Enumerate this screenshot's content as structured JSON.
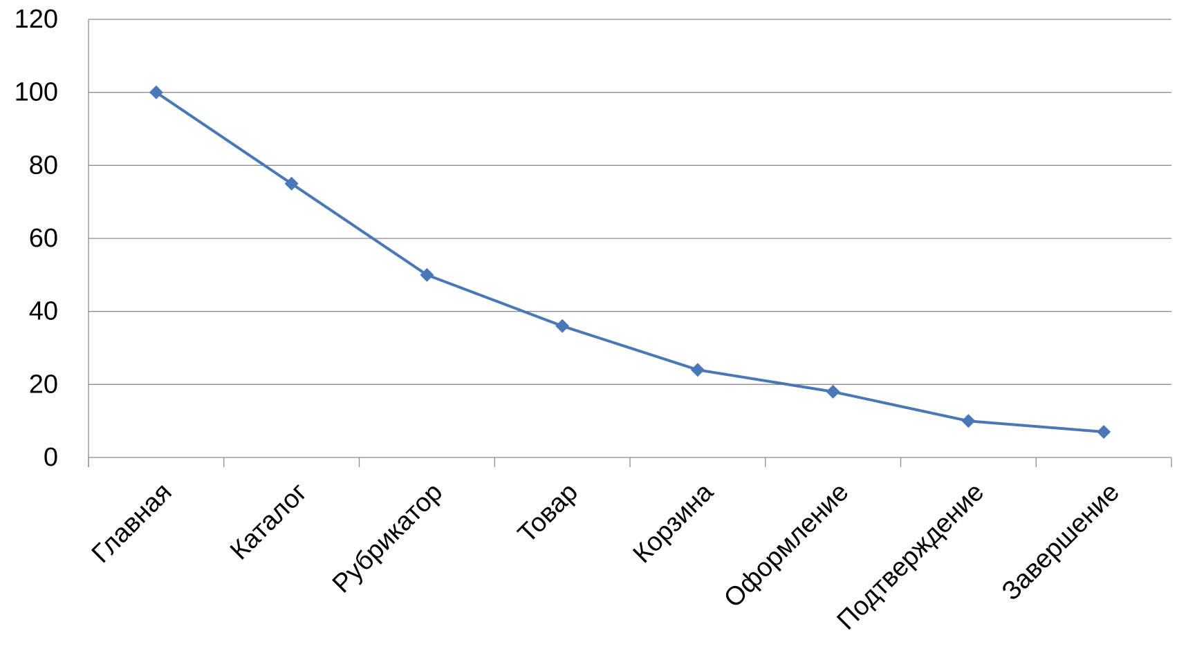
{
  "chart_data": {
    "type": "line",
    "title": "",
    "xlabel": "",
    "ylabel": "",
    "categories": [
      "Главная",
      "Каталог",
      "Рубрикатор",
      "Товар",
      "Корзина",
      "Оформление",
      "Подтверждение",
      "Завершение"
    ],
    "series": [
      {
        "values": [
          100,
          75,
          50,
          36,
          24,
          18,
          10,
          7
        ],
        "color": "#4a77b8",
        "marker": "diamond"
      }
    ],
    "ylim": [
      0,
      120
    ],
    "yticks": [
      "0",
      "20",
      "40",
      "60",
      "80",
      "100",
      "120"
    ],
    "grid": true,
    "legend": "none"
  }
}
